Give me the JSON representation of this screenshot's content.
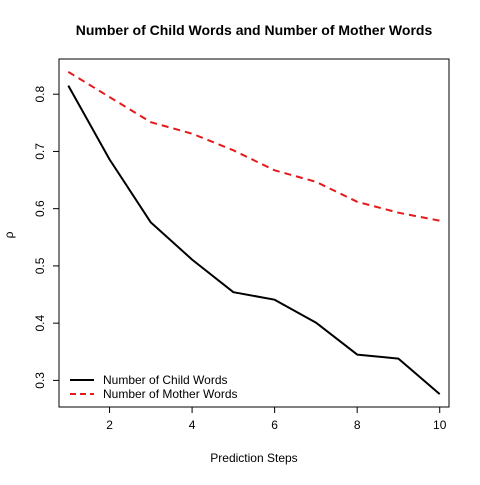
{
  "chart_data": {
    "type": "line",
    "title": "Number of Child Words and Number of Mother Words",
    "xlabel": "Prediction Steps",
    "ylabel": "ρ",
    "x": [
      1,
      2,
      3,
      4,
      5,
      6,
      7,
      8,
      9,
      10
    ],
    "xlim": [
      0.775,
      10.225
    ],
    "ylim": [
      0.2535,
      0.8615
    ],
    "xticks": [
      2,
      4,
      6,
      8,
      10
    ],
    "yticks": [
      0.3,
      0.4,
      0.5,
      0.6,
      0.7,
      0.8
    ],
    "grid": false,
    "legend_position": "bottom-left",
    "series": [
      {
        "name": "Number of Child Words",
        "color": "#000000",
        "line_style": "solid",
        "values": [
          0.815,
          0.686,
          0.576,
          0.511,
          0.454,
          0.441,
          0.401,
          0.345,
          0.338,
          0.276
        ]
      },
      {
        "name": "Number of Mother Words",
        "color": "#e41a1c",
        "line_style": "dashed",
        "values": [
          0.839,
          0.795,
          0.751,
          0.731,
          0.702,
          0.667,
          0.647,
          0.612,
          0.593,
          0.579
        ]
      }
    ]
  }
}
